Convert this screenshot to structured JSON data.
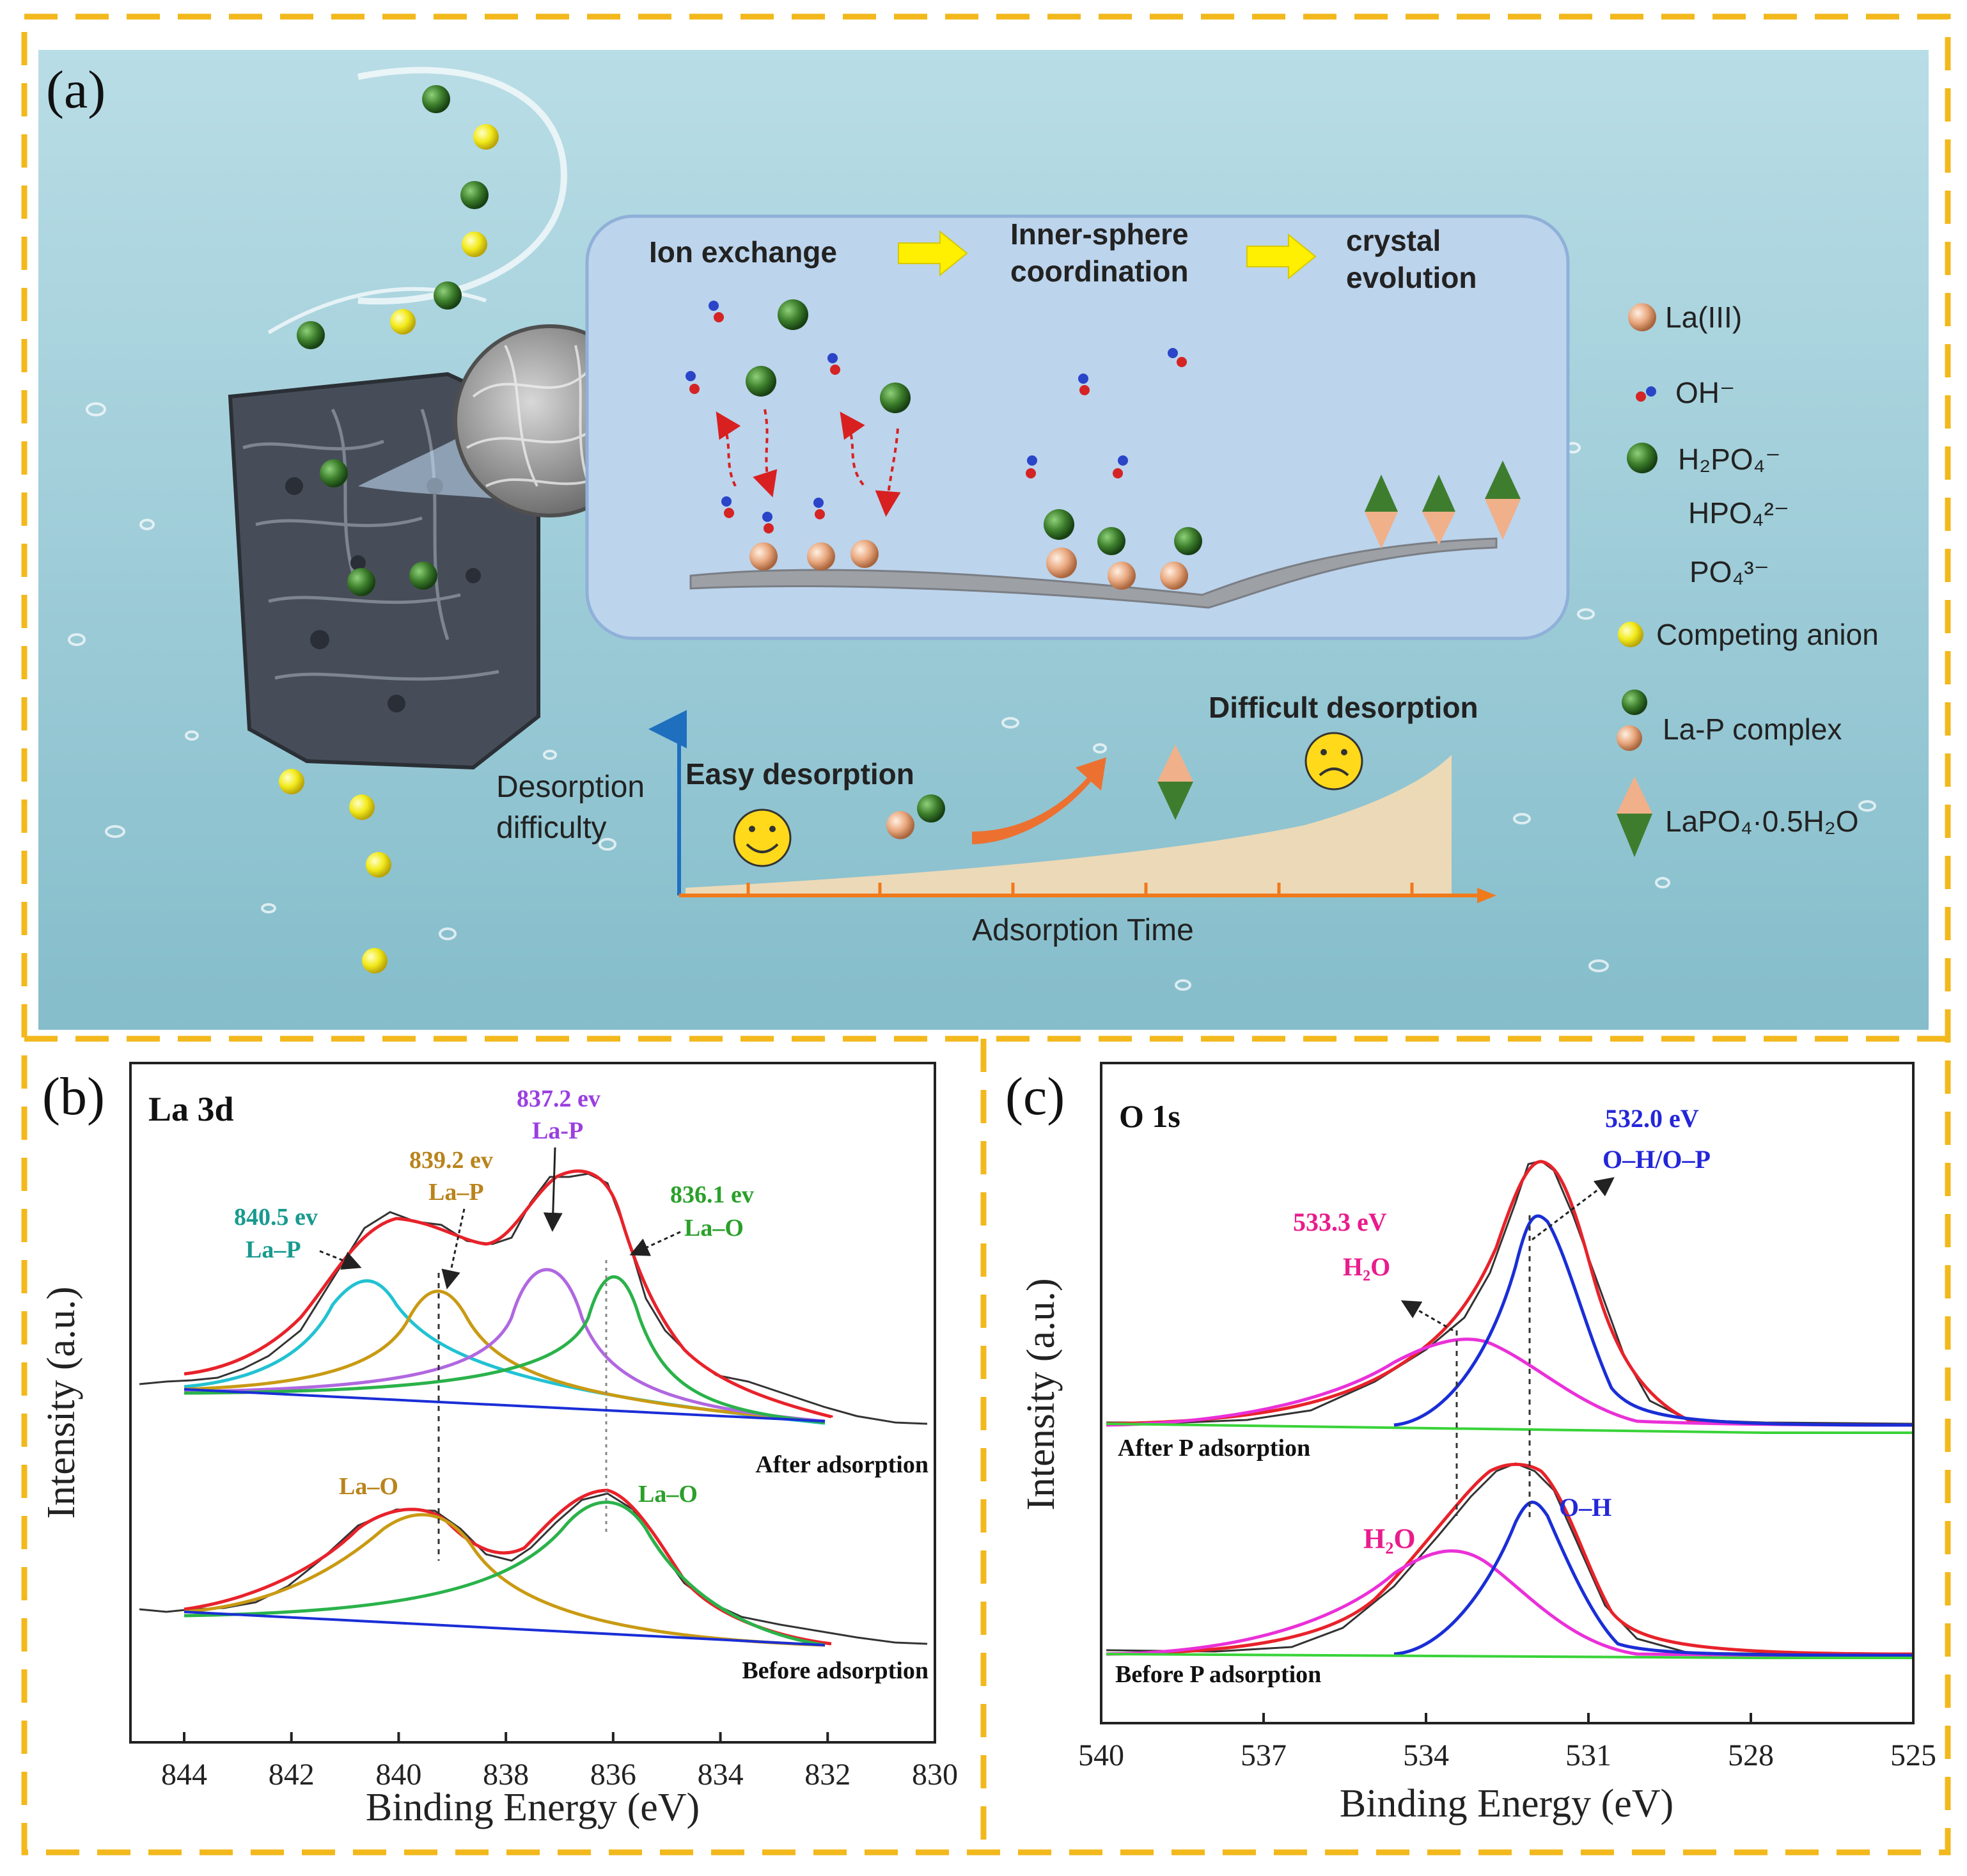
{
  "colors": {
    "frame_dash": "#f2b81c",
    "sky_top": "#b9dde6",
    "sky_bottom": "#7fb9c8",
    "process_box": "#bcd4ec",
    "arrow_yellow": "#ffef00",
    "phosphate_green": "#3d7f2c",
    "la_salmon": "#e9a87f",
    "competing_yellow": "#f2ea1a",
    "desorption_fill": "#f6dcb4",
    "axis_blue": "#1f6fbf",
    "axis_orange": "#ef7a1c",
    "trend_arrow": "#ec7130",
    "fit_red": "#e8222a",
    "peak_cyan": "#21c2d2",
    "peak_gold": "#c99a13",
    "peak_purple": "#b067e0",
    "peak_green": "#2ab24a",
    "peak_blue": "#1a2ed6",
    "peak_magenta": "#ea30d8",
    "baseline_green": "#39d339",
    "label_teal": "#199a8e",
    "label_gold": "#b9841c",
    "label_purple": "#9b3fe0",
    "label_green": "#2aa02a",
    "label_blue": "#2426d8",
    "label_magenta": "#e81c8c"
  },
  "panel_a": {
    "letter": "(a)",
    "process": {
      "step1": "Ion exchange",
      "step2_line1": "Inner-sphere",
      "step2_line2": "coordination",
      "step3_line1": "crystal",
      "step3_line2": "evolution"
    },
    "desorption": {
      "ylabel_line1": "Desorption",
      "ylabel_line2": "difficulty",
      "xlabel": "Adsorption Time",
      "easy": "Easy desorption",
      "difficult": "Difficult desorption"
    },
    "legend": [
      {
        "icon": "la-sphere",
        "text": "La(III)"
      },
      {
        "icon": "oh-ion",
        "text": "OH⁻"
      },
      {
        "icon": "phosphate-sphere",
        "text": "H₂PO₄⁻"
      },
      {
        "icon": "none",
        "text": "HPO₄²⁻"
      },
      {
        "icon": "none",
        "text": "PO₄³⁻"
      },
      {
        "icon": "competing-sphere",
        "text": "Competing anion"
      },
      {
        "icon": "la-p-complex",
        "text": "La-P complex"
      },
      {
        "icon": "lapo4-crystal",
        "text": "LaPO₄·0.5H₂O"
      }
    ]
  },
  "panel_b": {
    "letter": "(b)",
    "title": "La 3d",
    "xlabel": "Binding Energy (eV)",
    "ylabel": "Intensity (a.u.)",
    "xticks": [
      "844",
      "842",
      "840",
      "838",
      "836",
      "834",
      "832",
      "830"
    ],
    "curve_after": "After adsorption",
    "curve_before": "Before adsorption",
    "annotations": {
      "p1_value": "840.5 ev",
      "p1_species": "La–P",
      "p2_value": "839.2 ev",
      "p2_species": "La–P",
      "p3_value": "837.2 ev",
      "p3_species": "La-P",
      "p4_value": "836.1 ev",
      "p4_species": "La–O",
      "before_left": "La–O",
      "before_right": "La–O"
    }
  },
  "panel_c": {
    "letter": "(c)",
    "title": "O 1s",
    "xlabel": "Binding Energy (eV)",
    "ylabel": "Intensity (a.u.)",
    "xticks": [
      "540",
      "537",
      "534",
      "531",
      "528",
      "525"
    ],
    "curve_after": "After P adsorption",
    "curve_before": "Before P adsorption",
    "annotations": {
      "a1_value": "533.3 eV",
      "a1_species": "H₂O",
      "a2_value": "532.0 eV",
      "a2_species": "O–H/O–P",
      "b1_species": "H₂O",
      "b2_species": "O–H"
    }
  },
  "chart_data": [
    {
      "type": "line",
      "title": "La 3d",
      "xlabel": "Binding Energy (eV)",
      "ylabel": "Intensity (a.u.)",
      "xlim": [
        844,
        830
      ],
      "x_reversed": true,
      "series": [
        {
          "name": "After adsorption",
          "peaks_eV": [
            840.5,
            839.2,
            837.2,
            836.1
          ],
          "assignments": [
            "La–P",
            "La–P",
            "La-P",
            "La–O"
          ]
        },
        {
          "name": "Before adsorption",
          "peaks_eV": [
            839.3,
            836.1
          ],
          "assignments": [
            "La–O",
            "La–O"
          ]
        }
      ]
    },
    {
      "type": "line",
      "title": "O 1s",
      "xlabel": "Binding Energy (eV)",
      "ylabel": "Intensity (a.u.)",
      "xlim": [
        540,
        525
      ],
      "x_reversed": true,
      "series": [
        {
          "name": "After P adsorption",
          "peaks_eV": [
            533.3,
            532.0
          ],
          "assignments": [
            "H₂O",
            "O–H/O–P"
          ]
        },
        {
          "name": "Before P adsorption",
          "peaks_eV": [
            533.3,
            532.0
          ],
          "assignments": [
            "H₂O",
            "O–H"
          ]
        }
      ]
    }
  ]
}
